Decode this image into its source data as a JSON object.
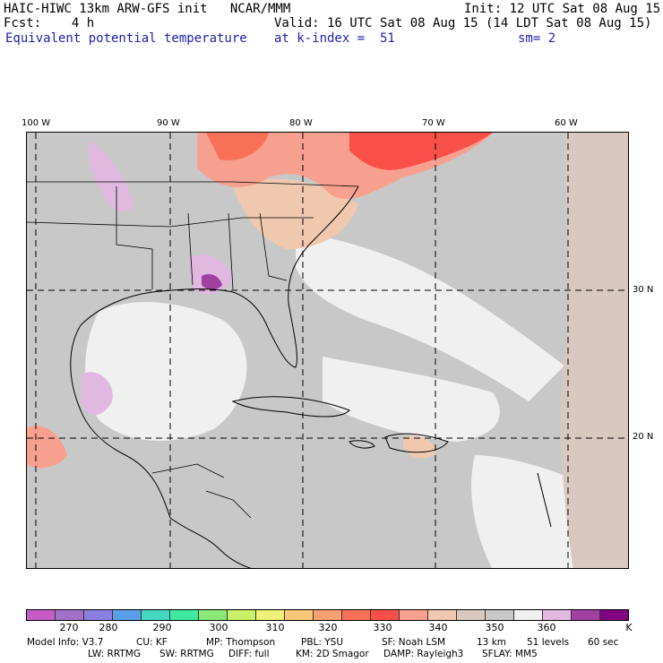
{
  "header": {
    "line1_left": "HAIC-HIWC 13km ARW-GFS init   NCAR/MMM",
    "line1_right": "Init: 12 UTC Sat 08 Aug 15",
    "line2_left": "Fcst:    4 h",
    "line2_right": "Valid: 16 UTC Sat 08 Aug 15 (14 LDT Sat 08 Aug 15)",
    "line3_left": "Equivalent potential temperature",
    "line3_mid": "at k-index =  51",
    "line3_right": "sm= 2"
  },
  "map": {
    "lon_labels": [
      "100 W",
      "90 W",
      "80 W",
      "70 W",
      "60 W"
    ],
    "lat_labels": [
      "30 N",
      "20 N"
    ]
  },
  "colorbar": {
    "colors": [
      "#c65bc6",
      "#a070c8",
      "#8a7fe0",
      "#5aa0e8",
      "#43d6c0",
      "#3fe8a0",
      "#8ae878",
      "#c8f068",
      "#f0f078",
      "#f8c878",
      "#f8a070",
      "#f87058",
      "#f85048",
      "#f8a090",
      "#f0c8b0",
      "#d8c8c0",
      "#c8c8c8",
      "#f0f0f0",
      "#e0b8e0",
      "#a040a0",
      "#800080"
    ],
    "tick_labels": [
      "270",
      "280",
      "290",
      "300",
      "310",
      "320",
      "330",
      "340",
      "350",
      "360"
    ],
    "unit": "K"
  },
  "footer": {
    "line1": [
      "Model Info: V3.7",
      "CU: KF",
      "MP: Thompson",
      "PBL: YSU",
      "SF: Noah LSM",
      "13 km",
      "51 levels",
      "60 sec"
    ],
    "line2": [
      "LW: RRTMG",
      "SW: RRTMG",
      "DIFF: full",
      "KM: 2D Smagor",
      "DAMP: Rayleigh3",
      "SFLAY: MM5"
    ]
  }
}
